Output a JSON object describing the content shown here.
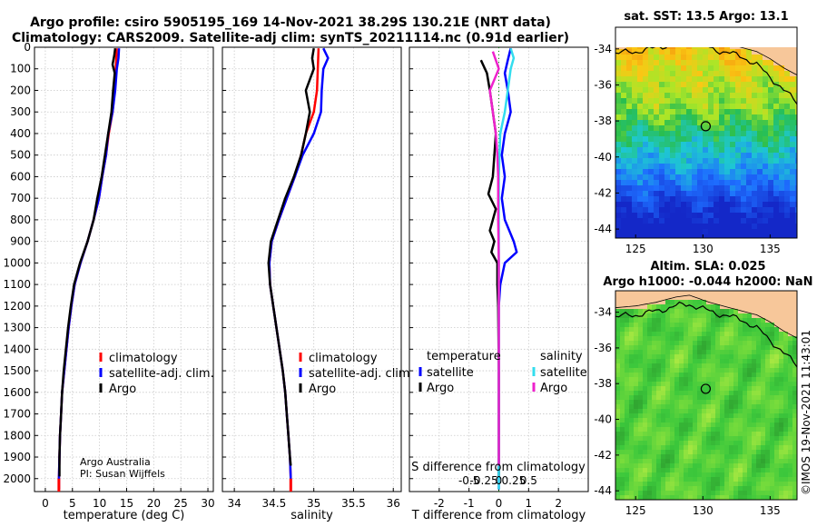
{
  "figure": {
    "title_line1": "Argo profile: csiro 5905195_169 14-Nov-2021 38.29S 130.21E (NRT data)",
    "title_line2": "Climatology: CARS2009. Satellite-adj clim: synTS_20211114.nc (0.91d earlier)",
    "credit": "©IMOS 19-Nov-2021 11:43:01",
    "source_line1": "Argo Australia",
    "source_line2": "PI: Susan Wijffels",
    "colors": {
      "climatology": "#ff0000",
      "satellite": "#0000ff",
      "argo": "#000000",
      "sat_salinity": "#33ddee",
      "argo_salinity": "#ee22cc"
    }
  },
  "chart_data": [
    {
      "type": "line",
      "id": "temperature",
      "xlabel": "temperature (deg C)",
      "ylabel": "",
      "xlim": [
        -2,
        31
      ],
      "ylim": [
        2060,
        0
      ],
      "xticks": [
        0,
        5,
        10,
        15,
        20,
        25,
        30
      ],
      "xtick_labels": [
        "0",
        "5",
        "10",
        "15",
        "20",
        "25",
        "30"
      ],
      "yticks": [
        0,
        100,
        200,
        300,
        400,
        500,
        600,
        700,
        800,
        900,
        1000,
        1100,
        1200,
        1300,
        1400,
        1500,
        1600,
        1700,
        1800,
        1900,
        2000
      ],
      "ytick_labels": [
        "0",
        "100",
        "200",
        "300",
        "400",
        "500",
        "600",
        "700",
        "800",
        "900",
        "1000",
        "1100",
        "1200",
        "1300",
        "1400",
        "1500",
        "1600",
        "1700",
        "1800",
        "1900",
        "2000"
      ],
      "grid": true,
      "legend": [
        "climatology",
        "satellite-adj. clim.",
        "Argo"
      ],
      "series": [
        {
          "name": "climatology",
          "color": "#ff0000",
          "points": [
            [
              13.2,
              5
            ],
            [
              13.1,
              50
            ],
            [
              13.0,
              100
            ],
            [
              12.8,
              200
            ],
            [
              12.4,
              300
            ],
            [
              11.7,
              400
            ],
            [
              11.2,
              500
            ],
            [
              10.5,
              600
            ],
            [
              9.9,
              700
            ],
            [
              8.9,
              800
            ],
            [
              7.8,
              900
            ],
            [
              6.5,
              1000
            ],
            [
              5.4,
              1100
            ],
            [
              4.8,
              1200
            ],
            [
              4.3,
              1300
            ],
            [
              3.9,
              1400
            ],
            [
              3.5,
              1500
            ],
            [
              3.1,
              1600
            ],
            [
              2.9,
              1700
            ],
            [
              2.7,
              1800
            ],
            [
              2.6,
              1900
            ],
            [
              2.5,
              2000
            ],
            [
              2.5,
              2050
            ]
          ]
        },
        {
          "name": "satellite-adj. clim.",
          "color": "#0000ff",
          "points": [
            [
              13.6,
              5
            ],
            [
              13.5,
              50
            ],
            [
              13.2,
              100
            ],
            [
              12.9,
              200
            ],
            [
              12.4,
              300
            ],
            [
              11.6,
              400
            ],
            [
              11.2,
              500
            ],
            [
              10.5,
              600
            ],
            [
              9.9,
              700
            ],
            [
              8.9,
              800
            ],
            [
              7.8,
              900
            ],
            [
              6.5,
              1000
            ],
            [
              5.4,
              1100
            ],
            [
              4.8,
              1200
            ],
            [
              4.3,
              1300
            ],
            [
              3.9,
              1400
            ],
            [
              3.5,
              1500
            ],
            [
              3.1,
              1600
            ],
            [
              2.9,
              1700
            ],
            [
              2.7,
              1800
            ],
            [
              2.6,
              1900
            ],
            [
              2.5,
              2000
            ],
            [
              2.5,
              2050
            ]
          ]
        },
        {
          "name": "Argo",
          "color": "#000000",
          "points": [
            [
              12.9,
              5
            ],
            [
              12.7,
              40
            ],
            [
              12.4,
              80
            ],
            [
              12.8,
              120
            ],
            [
              12.5,
              200
            ],
            [
              12.2,
              300
            ],
            [
              11.6,
              400
            ],
            [
              11.0,
              500
            ],
            [
              10.4,
              600
            ],
            [
              9.6,
              700
            ],
            [
              8.9,
              800
            ],
            [
              7.8,
              900
            ],
            [
              6.4,
              1000
            ],
            [
              5.3,
              1100
            ],
            [
              4.7,
              1200
            ],
            [
              4.2,
              1300
            ],
            [
              3.8,
              1400
            ],
            [
              3.4,
              1500
            ],
            [
              3.1,
              1600
            ],
            [
              2.9,
              1700
            ],
            [
              2.7,
              1800
            ],
            [
              2.6,
              1900
            ],
            [
              2.6,
              1990
            ]
          ]
        }
      ]
    },
    {
      "type": "line",
      "id": "salinity",
      "xlabel": "salinity",
      "xlim": [
        33.85,
        36.1
      ],
      "ylim": [
        2060,
        0
      ],
      "xticks": [
        34,
        34.5,
        35,
        35.5,
        36
      ],
      "xtick_labels": [
        "34",
        "34.5",
        "35",
        "35.5",
        "36"
      ],
      "grid": true,
      "legend": [
        "climatology",
        "satellite-adj. clim.",
        "Argo"
      ],
      "series": [
        {
          "name": "climatology",
          "color": "#ff0000",
          "points": [
            [
              35.06,
              5
            ],
            [
              35.05,
              100
            ],
            [
              35.04,
              200
            ],
            [
              35.0,
              300
            ],
            [
              34.9,
              400
            ],
            [
              34.84,
              500
            ],
            [
              34.76,
              600
            ],
            [
              34.66,
              700
            ],
            [
              34.56,
              800
            ],
            [
              34.47,
              900
            ],
            [
              34.44,
              1000
            ],
            [
              34.45,
              1100
            ],
            [
              34.49,
              1200
            ],
            [
              34.53,
              1300
            ],
            [
              34.57,
              1400
            ],
            [
              34.61,
              1500
            ],
            [
              34.64,
              1600
            ],
            [
              34.66,
              1700
            ],
            [
              34.68,
              1800
            ],
            [
              34.7,
              1900
            ],
            [
              34.71,
              2000
            ],
            [
              34.71,
              2050
            ]
          ]
        },
        {
          "name": "satellite-adj. clim.",
          "color": "#0000ff",
          "points": [
            [
              35.12,
              5
            ],
            [
              35.18,
              50
            ],
            [
              35.12,
              100
            ],
            [
              35.1,
              200
            ],
            [
              35.09,
              300
            ],
            [
              35.0,
              400
            ],
            [
              34.86,
              500
            ],
            [
              34.76,
              600
            ],
            [
              34.66,
              700
            ],
            [
              34.56,
              800
            ],
            [
              34.47,
              900
            ],
            [
              34.44,
              1000
            ],
            [
              34.45,
              1100
            ],
            [
              34.49,
              1200
            ],
            [
              34.53,
              1300
            ],
            [
              34.57,
              1400
            ],
            [
              34.61,
              1500
            ],
            [
              34.64,
              1600
            ],
            [
              34.66,
              1700
            ],
            [
              34.68,
              1800
            ],
            [
              34.7,
              1900
            ],
            [
              34.71,
              2000
            ],
            [
              34.71,
              2050
            ]
          ]
        },
        {
          "name": "Argo",
          "color": "#000000",
          "points": [
            [
              35.0,
              5
            ],
            [
              34.98,
              50
            ],
            [
              35.0,
              100
            ],
            [
              34.9,
              200
            ],
            [
              34.95,
              300
            ],
            [
              34.9,
              400
            ],
            [
              34.84,
              500
            ],
            [
              34.75,
              600
            ],
            [
              34.64,
              700
            ],
            [
              34.55,
              800
            ],
            [
              34.46,
              900
            ],
            [
              34.43,
              1000
            ],
            [
              34.45,
              1100
            ],
            [
              34.49,
              1200
            ],
            [
              34.53,
              1300
            ],
            [
              34.57,
              1400
            ],
            [
              34.61,
              1500
            ],
            [
              34.64,
              1600
            ],
            [
              34.66,
              1700
            ],
            [
              34.68,
              1800
            ],
            [
              34.7,
              1900
            ],
            [
              34.71,
              1940
            ]
          ]
        }
      ]
    },
    {
      "type": "line",
      "id": "difference",
      "xlabel": "T difference from climatology",
      "xlabel2": "S difference from climatology",
      "xlim": [
        -3,
        3
      ],
      "ylim": [
        2060,
        0
      ],
      "xticks": [
        -2,
        -1,
        0,
        1,
        2
      ],
      "xtick_labels": [
        "-2",
        "-1",
        "0",
        "1",
        "2"
      ],
      "s_ticks": [
        -1,
        -0.5,
        0,
        0.5,
        1
      ],
      "s_tick_labels": [
        "-0.5",
        "-0.25",
        "0",
        "0.25",
        "0.5"
      ],
      "grid": true,
      "legend_title_left": "temperature",
      "legend_title_right": "salinity",
      "legend_left": [
        "satellite",
        "Argo"
      ],
      "legend_right": [
        "satellite",
        "Argo"
      ],
      "series": [
        {
          "name": "temperature satellite",
          "color": "#0000ff",
          "points": [
            [
              0.4,
              5
            ],
            [
              0.3,
              60
            ],
            [
              0.2,
              120
            ],
            [
              0.3,
              200
            ],
            [
              0.4,
              300
            ],
            [
              0.2,
              400
            ],
            [
              0.1,
              500
            ],
            [
              0.2,
              600
            ],
            [
              0.1,
              700
            ],
            [
              0.2,
              800
            ],
            [
              0.5,
              900
            ],
            [
              0.6,
              950
            ],
            [
              0.2,
              1000
            ],
            [
              0.05,
              1100
            ],
            [
              0.0,
              1200
            ],
            [
              0.0,
              1500
            ],
            [
              0.0,
              2050
            ]
          ]
        },
        {
          "name": "temperature Argo",
          "color": "#000000",
          "points": [
            [
              -0.6,
              60
            ],
            [
              -0.4,
              120
            ],
            [
              -0.3,
              200
            ],
            [
              -0.2,
              300
            ],
            [
              -0.1,
              400
            ],
            [
              -0.15,
              500
            ],
            [
              -0.2,
              600
            ],
            [
              -0.35,
              680
            ],
            [
              -0.1,
              750
            ],
            [
              -0.2,
              800
            ],
            [
              -0.3,
              850
            ],
            [
              -0.15,
              900
            ],
            [
              -0.25,
              950
            ],
            [
              -0.05,
              1000
            ],
            [
              -0.05,
              1100
            ],
            [
              -0.02,
              1200
            ],
            [
              0.0,
              1500
            ],
            [
              0.0,
              1990
            ]
          ]
        },
        {
          "name": "salinity satellite",
          "color": "#33ddee",
          "points": [
            [
              0.4,
              5
            ],
            [
              0.5,
              50
            ],
            [
              0.4,
              100
            ],
            [
              0.3,
              200
            ],
            [
              0.2,
              300
            ],
            [
              0.05,
              400
            ],
            [
              0.02,
              500
            ],
            [
              0.0,
              600
            ],
            [
              0.0,
              1000
            ],
            [
              0.0,
              2050
            ]
          ]
        },
        {
          "name": "salinity Argo",
          "color": "#ee22cc",
          "points": [
            [
              -0.2,
              20
            ],
            [
              0.0,
              100
            ],
            [
              -0.3,
              200
            ],
            [
              -0.2,
              300
            ],
            [
              -0.1,
              400
            ],
            [
              -0.05,
              500
            ],
            [
              -0.02,
              600
            ],
            [
              -0.02,
              800
            ],
            [
              0.0,
              1000
            ],
            [
              0.0,
              1940
            ]
          ]
        }
      ]
    },
    {
      "type": "heatmap",
      "id": "sst_map",
      "title": "sat. SST: 13.5 Argo: 13.1",
      "xlim": [
        123.5,
        137
      ],
      "ylim": [
        -44.5,
        -32.8
      ],
      "xticks": [
        125,
        130,
        135
      ],
      "xtick_labels": [
        "125",
        "130",
        "135"
      ],
      "yticks": [
        -34,
        -36,
        -38,
        -40,
        -42,
        -44
      ],
      "ytick_labels": [
        "-34",
        "-36",
        "-38",
        "-40",
        "-42",
        "-44"
      ],
      "profile_location": [
        130.21,
        -38.29
      ]
    },
    {
      "type": "heatmap",
      "id": "sla_map",
      "title1": "Altim. SLA: 0.025",
      "title2": "Argo h1000: -0.044 h2000: NaN",
      "xlim": [
        123.5,
        137
      ],
      "ylim": [
        -44.5,
        -32.8
      ],
      "xticks": [
        125,
        130,
        135
      ],
      "xtick_labels": [
        "125",
        "130",
        "135"
      ],
      "yticks": [
        -34,
        -36,
        -38,
        -40,
        -42,
        -44
      ],
      "ytick_labels": [
        "-34",
        "-36",
        "-38",
        "-40",
        "-42",
        "-44"
      ],
      "profile_location": [
        130.21,
        -38.29
      ]
    }
  ]
}
